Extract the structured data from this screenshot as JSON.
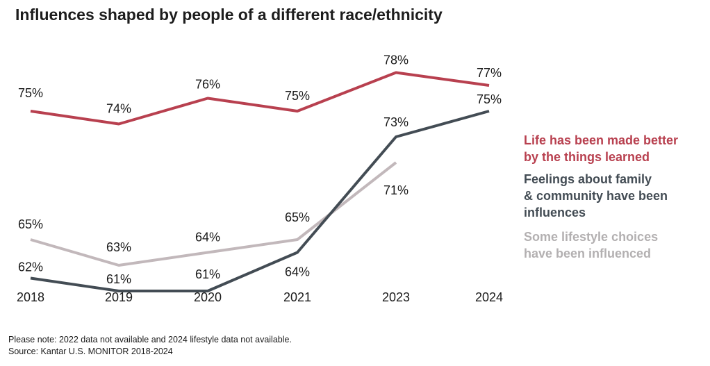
{
  "title": "Influences shaped by people of a different race/ethnicity",
  "colors": {
    "red": "#b8404f",
    "dark": "#434c54",
    "gray": "#c2b8bb"
  },
  "legend": [
    {
      "lines": [
        "Life has been made better",
        "by the things learned"
      ],
      "color": "#b8404f"
    },
    {
      "lines": [
        "Feelings about family",
        "& community have been",
        "influences"
      ],
      "color": "#434c54"
    },
    {
      "lines": [
        "Some lifestyle choices",
        "have been influenced"
      ],
      "color": "#b3b0b1"
    }
  ],
  "notes": [
    "Please note: 2022 data not available and 2024 lifestyle data not available.",
    "Source: Kantar U.S. MONITOR 2018-2024"
  ],
  "chart_data": {
    "type": "line",
    "categories": [
      "2018",
      "2019",
      "2020",
      "2021",
      "2023",
      "2024"
    ],
    "series": [
      {
        "name": "Life has been made better by the things learned",
        "color": "#b8404f",
        "values": [
          75,
          74,
          76,
          75,
          78,
          77
        ],
        "labels": [
          "75%",
          "74%",
          "76%",
          "75%",
          "78%",
          "77%"
        ]
      },
      {
        "name": "Feelings about family & community have been influences",
        "color": "#434c54",
        "values": [
          62,
          61,
          61,
          64,
          73,
          75
        ],
        "labels": [
          "62%",
          "61%",
          "61%",
          "64%",
          "73%",
          "75%"
        ]
      },
      {
        "name": "Some lifestyle choices have been influenced",
        "color": "#c2b8bb",
        "values": [
          65,
          63,
          64,
          65,
          71,
          null
        ],
        "labels": [
          "65%",
          "63%",
          "64%",
          "65%",
          "71%",
          null
        ]
      }
    ]
  }
}
